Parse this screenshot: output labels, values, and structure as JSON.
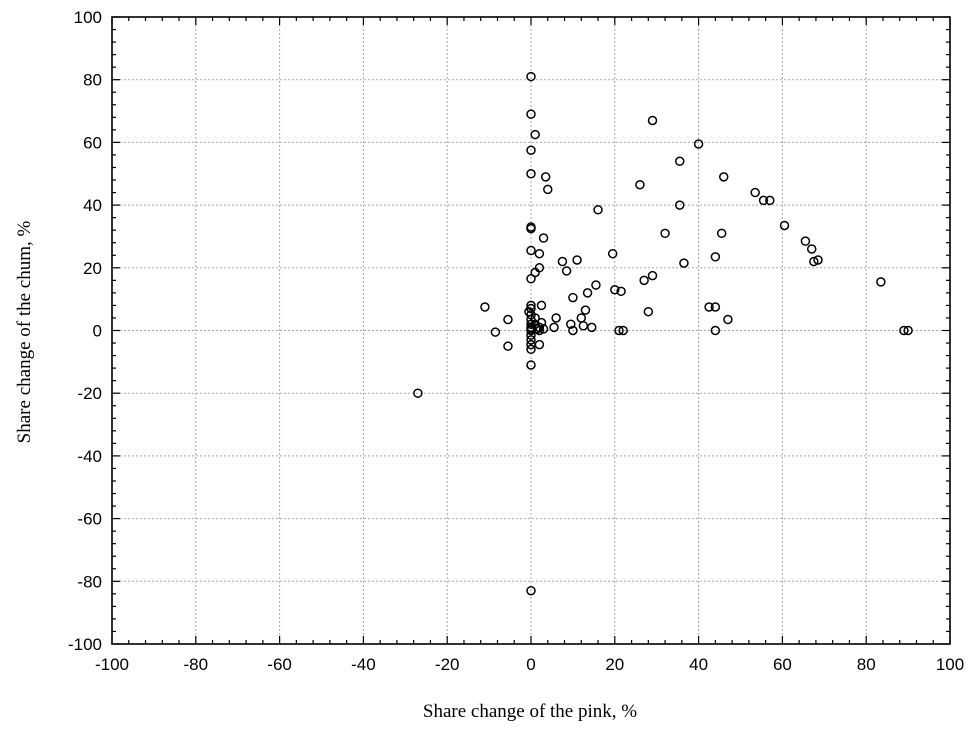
{
  "chart_data": {
    "type": "scatter",
    "xlabel": "Share change of the pink, %",
    "ylabel": "Share change of the chum, %",
    "xlim": [
      -100,
      100
    ],
    "ylim": [
      -100,
      100
    ],
    "xticks": [
      -100,
      -80,
      -60,
      -40,
      -20,
      0,
      20,
      40,
      60,
      80,
      100
    ],
    "yticks": [
      -100,
      -80,
      -60,
      -40,
      -20,
      0,
      20,
      40,
      60,
      80,
      100
    ],
    "grid": true,
    "marker": "open-circle",
    "points": [
      [
        -27,
        -20
      ],
      [
        -11,
        7.5
      ],
      [
        -8.5,
        -0.5
      ],
      [
        -5.5,
        3.5
      ],
      [
        -5.5,
        -5
      ],
      [
        -0.5,
        6
      ],
      [
        0,
        81
      ],
      [
        0,
        69
      ],
      [
        0,
        57.5
      ],
      [
        0,
        50
      ],
      [
        0,
        33
      ],
      [
        0,
        32.5
      ],
      [
        0,
        25.5
      ],
      [
        0,
        16.5
      ],
      [
        0,
        8
      ],
      [
        0,
        7
      ],
      [
        0,
        5
      ],
      [
        0,
        3.5
      ],
      [
        0,
        2
      ],
      [
        0,
        1
      ],
      [
        0,
        0.5
      ],
      [
        0,
        0
      ],
      [
        0,
        -1.5
      ],
      [
        0,
        -3
      ],
      [
        0,
        -4.5
      ],
      [
        0,
        -6
      ],
      [
        0,
        -11
      ],
      [
        0,
        -83
      ],
      [
        1,
        62.5
      ],
      [
        1,
        18.5
      ],
      [
        1,
        4
      ],
      [
        1,
        2
      ],
      [
        1.5,
        0.5
      ],
      [
        2,
        24.5
      ],
      [
        2,
        20
      ],
      [
        2,
        1
      ],
      [
        2,
        0
      ],
      [
        2,
        -4.5
      ],
      [
        2.5,
        8
      ],
      [
        2.5,
        2.5
      ],
      [
        3,
        29.5
      ],
      [
        3,
        0.5
      ],
      [
        3.5,
        49
      ],
      [
        4,
        45
      ],
      [
        5.5,
        1
      ],
      [
        6,
        4
      ],
      [
        7.5,
        22
      ],
      [
        8.5,
        19
      ],
      [
        9.5,
        2
      ],
      [
        10,
        0
      ],
      [
        10,
        10.5
      ],
      [
        11,
        22.5
      ],
      [
        12,
        4
      ],
      [
        12.5,
        1.5
      ],
      [
        13,
        6.5
      ],
      [
        13.5,
        12
      ],
      [
        14.5,
        1
      ],
      [
        15.5,
        14.5
      ],
      [
        16,
        38.5
      ],
      [
        19.5,
        24.5
      ],
      [
        20,
        13
      ],
      [
        21,
        0
      ],
      [
        21.5,
        12.5
      ],
      [
        22,
        0
      ],
      [
        26,
        46.5
      ],
      [
        27,
        16
      ],
      [
        28,
        6
      ],
      [
        29,
        67
      ],
      [
        29,
        17.5
      ],
      [
        32,
        31
      ],
      [
        35.5,
        40
      ],
      [
        35.5,
        54
      ],
      [
        36.5,
        21.5
      ],
      [
        40,
        59.5
      ],
      [
        42.5,
        7.5
      ],
      [
        44,
        7.5
      ],
      [
        44,
        0
      ],
      [
        44,
        23.5
      ],
      [
        45.5,
        31
      ],
      [
        46,
        49
      ],
      [
        47,
        3.5
      ],
      [
        53.5,
        44
      ],
      [
        55.5,
        41.5
      ],
      [
        57,
        41.5
      ],
      [
        60.5,
        33.5
      ],
      [
        65.5,
        28.5
      ],
      [
        67,
        26
      ],
      [
        67.5,
        22
      ],
      [
        68.5,
        22.5
      ],
      [
        83.5,
        15.5
      ],
      [
        89,
        0
      ],
      [
        90,
        0
      ]
    ]
  }
}
